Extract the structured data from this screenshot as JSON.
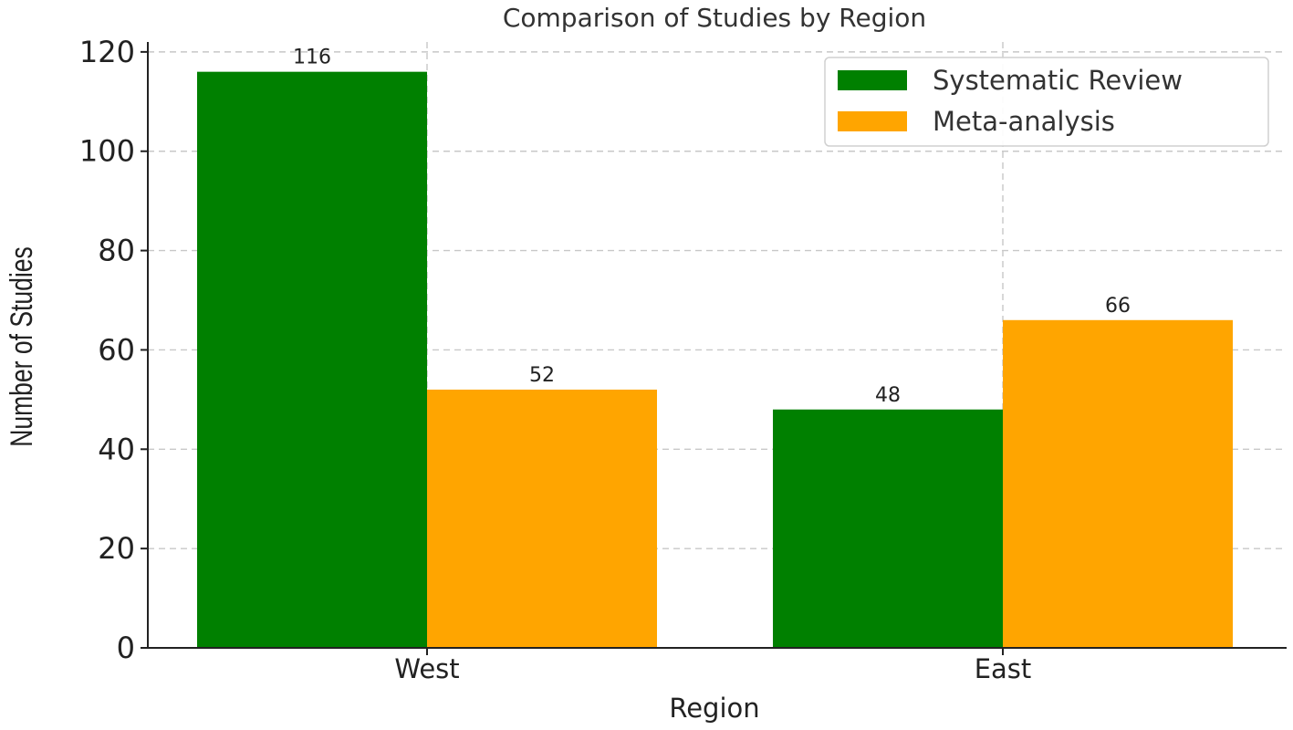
{
  "chart_data": {
    "type": "bar",
    "title": "Comparison of Studies by Region",
    "xlabel": "Region",
    "ylabel": "Number of Studies",
    "categories": [
      "West",
      "East"
    ],
    "series": [
      {
        "name": "Systematic Review",
        "values": [
          116,
          48
        ],
        "color": "#008000"
      },
      {
        "name": "Meta-analysis",
        "values": [
          52,
          66
        ],
        "color": "#FFA500"
      }
    ],
    "ylim": [
      0,
      122
    ],
    "yticks": [
      0,
      20,
      40,
      60,
      80,
      100,
      120
    ],
    "grid": true,
    "legend_position": "top-right",
    "data_labels": true
  }
}
